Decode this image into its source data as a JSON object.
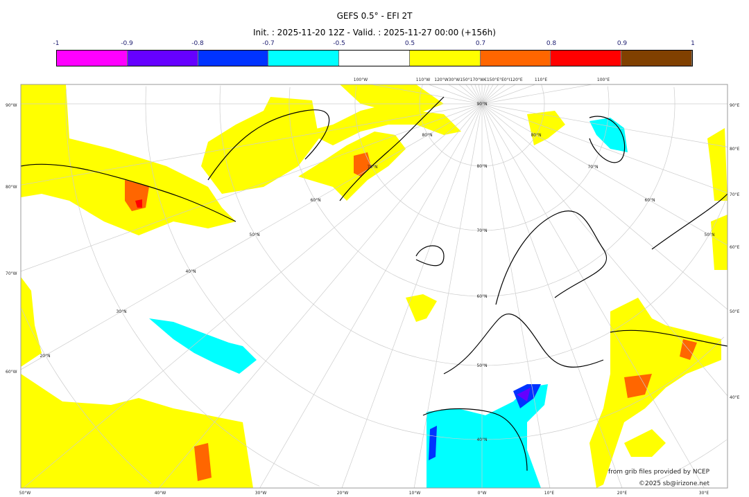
{
  "title": "GEFS 0.5° - EFI 2T",
  "subtitle": "Init. : 2025-11-20 12Z - Valid. : 2025-11-27 00:00 (+156h)",
  "colorbar": {
    "ticks": [
      "-1",
      "-0.9",
      "-0.8",
      "-0.7",
      "-0.5",
      "0.5",
      "0.7",
      "0.8",
      "0.9",
      "1"
    ],
    "colors": [
      "#ff00ff",
      "#6600ff",
      "#0033ff",
      "#00ffff",
      "#ffffff",
      "#ffff00",
      "#ff6600",
      "#ff0000",
      "#804000"
    ]
  },
  "map": {
    "left_labels": [
      "90°W",
      "80°W",
      "70°W",
      "60°W"
    ],
    "right_labels": [
      "90°E",
      "80°E",
      "70°E",
      "60°E",
      "50°E",
      "40°E"
    ],
    "bottom_labels": [
      "50°W",
      "40°W",
      "30°W",
      "20°W",
      "10°W",
      "0°W",
      "10°E",
      "20°E",
      "30°E"
    ],
    "top_labels": [
      "100°W",
      "110°W",
      "120°W30°W150°170°W€150°E°E0°I120°E",
      "110°E",
      "100°E"
    ],
    "lat_labels_center": [
      "90°N",
      "80°N",
      "70°N",
      "60°N",
      "50°N",
      "40°N"
    ],
    "lat_labels_right": [
      "80°N",
      "70°N",
      "60°N",
      "50°N"
    ],
    "lat_labels_left": [
      "80°N",
      "70°N",
      "60°N",
      "50°N",
      "40°N",
      "30°N",
      "20°N"
    ]
  },
  "credits": {
    "line1": "from grib files provided by NCEP",
    "line2": "©2025 sb@irizone.net"
  }
}
